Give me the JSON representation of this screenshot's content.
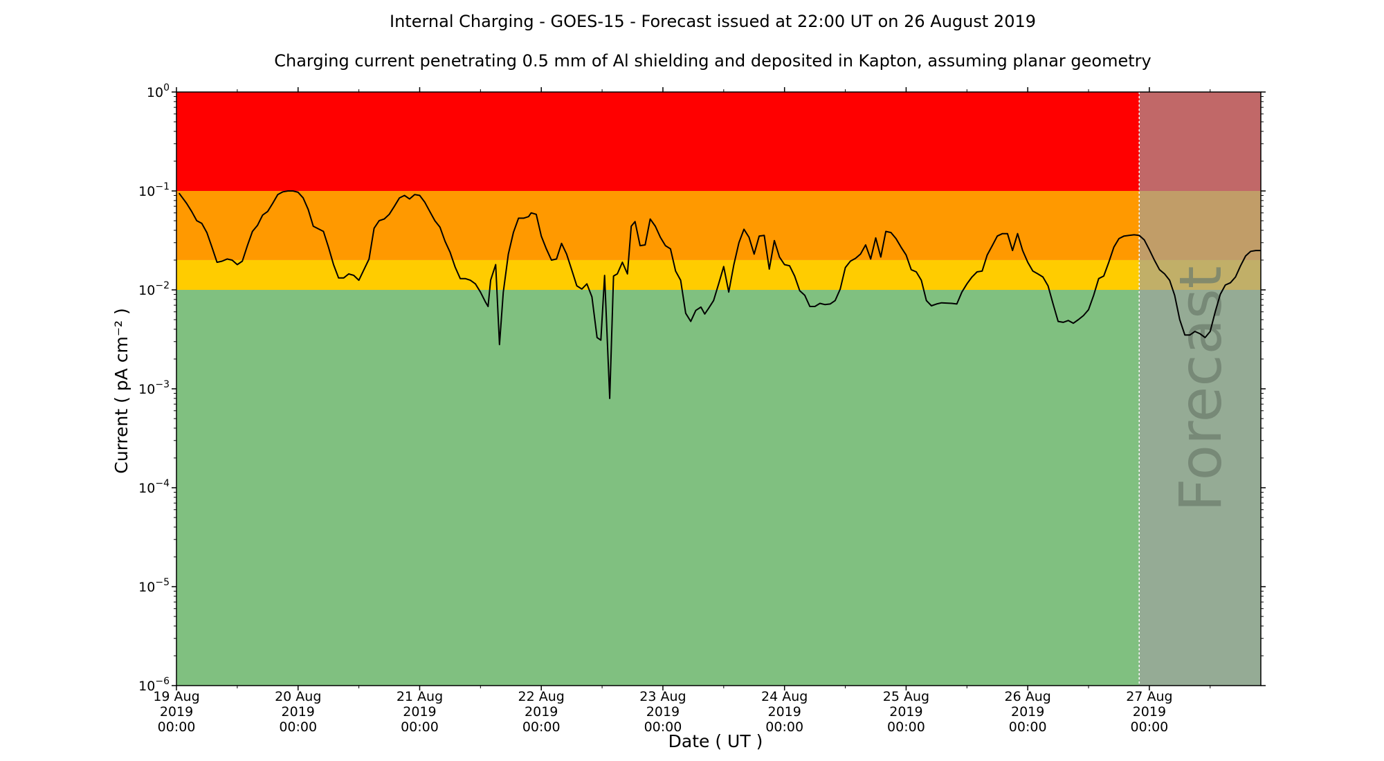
{
  "chart_data": {
    "type": "line",
    "title": "Internal Charging - GOES-15 - Forecast issued at 22:00 UT on 26 August 2019",
    "subtitle": "Charging current penetrating 0.5 mm of Al shielding and deposited in Kapton, assuming planar geometry",
    "xlabel": "Date ( UT )",
    "ylabel": "Current ( pA cm⁻² )",
    "y_scale": "log",
    "ylim": [
      1e-06,
      1
    ],
    "xlim": [
      "2019-08-19 00:00",
      "2019-08-27 22:00"
    ],
    "y_ticks": [
      {
        "value": 1e-06,
        "base": "10",
        "exp": "−6"
      },
      {
        "value": 1e-05,
        "base": "10",
        "exp": "−5"
      },
      {
        "value": 0.0001,
        "base": "10",
        "exp": "−4"
      },
      {
        "value": 0.001,
        "base": "10",
        "exp": "−3"
      },
      {
        "value": 0.01,
        "base": "10",
        "exp": "−2"
      },
      {
        "value": 0.1,
        "base": "10",
        "exp": "−1"
      },
      {
        "value": 1,
        "base": "10",
        "exp": "0"
      }
    ],
    "x_ticks": [
      {
        "date": "2019-08-19 00:00",
        "lines": [
          "19 Aug",
          "2019",
          "00:00"
        ]
      },
      {
        "date": "2019-08-20 00:00",
        "lines": [
          "20 Aug",
          "2019",
          "00:00"
        ]
      },
      {
        "date": "2019-08-21 00:00",
        "lines": [
          "21 Aug",
          "2019",
          "00:00"
        ]
      },
      {
        "date": "2019-08-22 00:00",
        "lines": [
          "22 Aug",
          "2019",
          "00:00"
        ]
      },
      {
        "date": "2019-08-23 00:00",
        "lines": [
          "23 Aug",
          "2019",
          "00:00"
        ]
      },
      {
        "date": "2019-08-24 00:00",
        "lines": [
          "24 Aug",
          "2019",
          "00:00"
        ]
      },
      {
        "date": "2019-08-25 00:00",
        "lines": [
          "25 Aug",
          "2019",
          "00:00"
        ]
      },
      {
        "date": "2019-08-26 00:00",
        "lines": [
          "26 Aug",
          "2019",
          "00:00"
        ]
      },
      {
        "date": "2019-08-27 00:00",
        "lines": [
          "27 Aug",
          "2019",
          "00:00"
        ]
      }
    ],
    "x_minor_ticks": [
      "2019-08-19 12:00",
      "2019-08-20 12:00",
      "2019-08-21 12:00",
      "2019-08-22 12:00",
      "2019-08-23 12:00",
      "2019-08-24 12:00",
      "2019-08-25 12:00",
      "2019-08-26 12:00",
      "2019-08-27 12:00"
    ],
    "bands": [
      {
        "from": 0.1,
        "to": 1,
        "color": "#ff0000"
      },
      {
        "from": 0.02,
        "to": 0.1,
        "color": "#ff9900"
      },
      {
        "from": 0.01,
        "to": 0.02,
        "color": "#ffcc00"
      },
      {
        "from": 1e-06,
        "to": 0.01,
        "color": "#80c080"
      }
    ],
    "forecast": {
      "start": "2019-08-26 22:00",
      "label": "Forecast",
      "overlay_color": "#a0a0a0",
      "overlay_opacity": 0.65
    },
    "line_color": "#000000",
    "series": [
      {
        "points": [
          [
            "2019-08-19 00:30",
            0.095
          ],
          [
            "2019-08-19 02:00",
            0.075
          ],
          [
            "2019-08-19 03:00",
            0.062
          ],
          [
            "2019-08-19 04:00",
            0.05
          ],
          [
            "2019-08-19 05:00",
            0.047
          ],
          [
            "2019-08-19 06:00",
            0.038
          ],
          [
            "2019-08-19 07:00",
            0.027
          ],
          [
            "2019-08-19 08:00",
            0.019
          ],
          [
            "2019-08-19 09:00",
            0.0195
          ],
          [
            "2019-08-19 10:00",
            0.0205
          ],
          [
            "2019-08-19 11:00",
            0.02
          ],
          [
            "2019-08-19 12:00",
            0.018
          ],
          [
            "2019-08-19 13:00",
            0.0195
          ],
          [
            "2019-08-19 14:00",
            0.028
          ],
          [
            "2019-08-19 15:00",
            0.039
          ],
          [
            "2019-08-19 16:00",
            0.045
          ],
          [
            "2019-08-19 17:00",
            0.057
          ],
          [
            "2019-08-19 18:00",
            0.062
          ],
          [
            "2019-08-19 19:00",
            0.075
          ],
          [
            "2019-08-19 20:00",
            0.092
          ],
          [
            "2019-08-19 21:00",
            0.098
          ],
          [
            "2019-08-19 22:00",
            0.1
          ],
          [
            "2019-08-19 23:00",
            0.1
          ],
          [
            "2019-08-20 00:00",
            0.097
          ],
          [
            "2019-08-20 01:00",
            0.085
          ],
          [
            "2019-08-20 02:00",
            0.065
          ],
          [
            "2019-08-20 03:00",
            0.044
          ],
          [
            "2019-08-20 05:00",
            0.039
          ],
          [
            "2019-08-20 06:00",
            0.027
          ],
          [
            "2019-08-20 07:00",
            0.018
          ],
          [
            "2019-08-20 08:00",
            0.0132
          ],
          [
            "2019-08-20 09:00",
            0.0132
          ],
          [
            "2019-08-20 10:00",
            0.0145
          ],
          [
            "2019-08-20 11:00",
            0.014
          ],
          [
            "2019-08-20 12:00",
            0.0125
          ],
          [
            "2019-08-20 13:00",
            0.016
          ],
          [
            "2019-08-20 14:00",
            0.0205
          ],
          [
            "2019-08-20 15:00",
            0.042
          ],
          [
            "2019-08-20 16:00",
            0.05
          ],
          [
            "2019-08-20 17:00",
            0.052
          ],
          [
            "2019-08-20 18:00",
            0.058
          ],
          [
            "2019-08-20 19:00",
            0.07
          ],
          [
            "2019-08-20 20:00",
            0.085
          ],
          [
            "2019-08-20 21:00",
            0.09
          ],
          [
            "2019-08-20 22:00",
            0.083
          ],
          [
            "2019-08-20 23:00",
            0.092
          ],
          [
            "2019-08-21 00:00",
            0.09
          ],
          [
            "2019-08-21 01:00",
            0.077
          ],
          [
            "2019-08-21 02:00",
            0.062
          ],
          [
            "2019-08-21 03:00",
            0.05
          ],
          [
            "2019-08-21 04:00",
            0.043
          ],
          [
            "2019-08-21 05:00",
            0.031
          ],
          [
            "2019-08-21 06:00",
            0.024
          ],
          [
            "2019-08-21 07:00",
            0.017
          ],
          [
            "2019-08-21 08:00",
            0.013
          ],
          [
            "2019-08-21 09:00",
            0.013
          ],
          [
            "2019-08-21 10:00",
            0.0125
          ],
          [
            "2019-08-21 11:00",
            0.0115
          ],
          [
            "2019-08-21 12:00",
            0.0095
          ],
          [
            "2019-08-21 13:00",
            0.0075
          ],
          [
            "2019-08-21 13:30",
            0.0068
          ],
          [
            "2019-08-21 14:00",
            0.0125
          ],
          [
            "2019-08-21 15:00",
            0.018
          ],
          [
            "2019-08-21 15:45",
            0.0028
          ],
          [
            "2019-08-21 16:30",
            0.0095
          ],
          [
            "2019-08-21 17:30",
            0.023
          ],
          [
            "2019-08-21 18:30",
            0.038
          ],
          [
            "2019-08-21 19:30",
            0.053
          ],
          [
            "2019-08-21 20:30",
            0.053
          ],
          [
            "2019-08-21 21:30",
            0.055
          ],
          [
            "2019-08-21 22:00",
            0.06
          ],
          [
            "2019-08-21 23:00",
            0.058
          ],
          [
            "2019-08-22 00:00",
            0.035
          ],
          [
            "2019-08-22 01:00",
            0.026
          ],
          [
            "2019-08-22 02:00",
            0.02
          ],
          [
            "2019-08-22 03:00",
            0.0205
          ],
          [
            "2019-08-22 04:00",
            0.0295
          ],
          [
            "2019-08-22 05:00",
            0.023
          ],
          [
            "2019-08-22 06:00",
            0.016
          ],
          [
            "2019-08-22 07:00",
            0.011
          ],
          [
            "2019-08-22 08:00",
            0.0102
          ],
          [
            "2019-08-22 09:00",
            0.0115
          ],
          [
            "2019-08-22 10:00",
            0.0085
          ],
          [
            "2019-08-22 11:00",
            0.0033
          ],
          [
            "2019-08-22 11:45",
            0.0031
          ],
          [
            "2019-08-22 12:30",
            0.014
          ],
          [
            "2019-08-22 13:30",
            0.0008
          ],
          [
            "2019-08-22 14:15",
            0.0138
          ],
          [
            "2019-08-22 15:00",
            0.0145
          ],
          [
            "2019-08-22 16:00",
            0.019
          ],
          [
            "2019-08-22 17:00",
            0.0145
          ],
          [
            "2019-08-22 17:45",
            0.044
          ],
          [
            "2019-08-22 18:30",
            0.049
          ],
          [
            "2019-08-22 19:30",
            0.028
          ],
          [
            "2019-08-22 20:30",
            0.0285
          ],
          [
            "2019-08-22 21:30",
            0.052
          ],
          [
            "2019-08-22 22:30",
            0.044
          ],
          [
            "2019-08-22 23:30",
            0.034
          ],
          [
            "2019-08-23 00:30",
            0.028
          ],
          [
            "2019-08-23 01:30",
            0.026
          ],
          [
            "2019-08-23 02:30",
            0.0155
          ],
          [
            "2019-08-23 03:30",
            0.0125
          ],
          [
            "2019-08-23 04:30",
            0.0058
          ],
          [
            "2019-08-23 05:30",
            0.0048
          ],
          [
            "2019-08-23 06:30",
            0.0062
          ],
          [
            "2019-08-23 07:30",
            0.0067
          ],
          [
            "2019-08-23 08:15",
            0.0057
          ],
          [
            "2019-08-23 09:00",
            0.0065
          ],
          [
            "2019-08-23 10:00",
            0.0078
          ],
          [
            "2019-08-23 11:00",
            0.0115
          ],
          [
            "2019-08-23 12:00",
            0.0172
          ],
          [
            "2019-08-23 13:00",
            0.0095
          ],
          [
            "2019-08-23 14:00",
            0.018
          ],
          [
            "2019-08-23 15:00",
            0.03
          ],
          [
            "2019-08-23 16:00",
            0.041
          ],
          [
            "2019-08-23 17:00",
            0.034
          ],
          [
            "2019-08-23 18:00",
            0.023
          ],
          [
            "2019-08-23 19:00",
            0.035
          ],
          [
            "2019-08-23 20:00",
            0.0355
          ],
          [
            "2019-08-23 21:00",
            0.0162
          ],
          [
            "2019-08-23 22:00",
            0.0315
          ],
          [
            "2019-08-23 23:00",
            0.0215
          ],
          [
            "2019-08-24 00:00",
            0.018
          ],
          [
            "2019-08-24 01:00",
            0.0175
          ],
          [
            "2019-08-24 02:00",
            0.0138
          ],
          [
            "2019-08-24 03:00",
            0.0098
          ],
          [
            "2019-08-24 04:00",
            0.0088
          ],
          [
            "2019-08-24 05:00",
            0.0068
          ],
          [
            "2019-08-24 06:00",
            0.0068
          ],
          [
            "2019-08-24 07:00",
            0.0073
          ],
          [
            "2019-08-24 08:00",
            0.0071
          ],
          [
            "2019-08-24 09:00",
            0.0072
          ],
          [
            "2019-08-24 10:00",
            0.0078
          ],
          [
            "2019-08-24 11:00",
            0.0102
          ],
          [
            "2019-08-24 12:00",
            0.0168
          ],
          [
            "2019-08-24 13:00",
            0.0195
          ],
          [
            "2019-08-24 14:00",
            0.0208
          ],
          [
            "2019-08-24 15:00",
            0.023
          ],
          [
            "2019-08-24 16:00",
            0.0285
          ],
          [
            "2019-08-24 17:00",
            0.0205
          ],
          [
            "2019-08-24 18:00",
            0.0335
          ],
          [
            "2019-08-24 19:00",
            0.0215
          ],
          [
            "2019-08-24 20:00",
            0.039
          ],
          [
            "2019-08-24 21:00",
            0.038
          ],
          [
            "2019-08-24 22:00",
            0.033
          ],
          [
            "2019-08-24 23:00",
            0.027
          ],
          [
            "2019-08-25 00:00",
            0.0225
          ],
          [
            "2019-08-25 01:00",
            0.016
          ],
          [
            "2019-08-25 02:00",
            0.0152
          ],
          [
            "2019-08-25 03:00",
            0.0125
          ],
          [
            "2019-08-25 04:00",
            0.0078
          ],
          [
            "2019-08-25 05:00",
            0.0069
          ],
          [
            "2019-08-25 06:00",
            0.0072
          ],
          [
            "2019-08-25 07:00",
            0.0074
          ],
          [
            "2019-08-25 09:00",
            0.0073
          ],
          [
            "2019-08-25 10:00",
            0.0072
          ],
          [
            "2019-08-25 11:00",
            0.0095
          ],
          [
            "2019-08-25 12:00",
            0.0115
          ],
          [
            "2019-08-25 13:00",
            0.0135
          ],
          [
            "2019-08-25 14:00",
            0.0152
          ],
          [
            "2019-08-25 15:00",
            0.0155
          ],
          [
            "2019-08-25 16:00",
            0.0225
          ],
          [
            "2019-08-25 17:00",
            0.028
          ],
          [
            "2019-08-25 18:00",
            0.035
          ],
          [
            "2019-08-25 19:00",
            0.037
          ],
          [
            "2019-08-25 20:00",
            0.037
          ],
          [
            "2019-08-25 21:00",
            0.025
          ],
          [
            "2019-08-25 22:00",
            0.037
          ],
          [
            "2019-08-25 23:00",
            0.025
          ],
          [
            "2019-08-26 00:00",
            0.019
          ],
          [
            "2019-08-26 01:00",
            0.0155
          ],
          [
            "2019-08-26 02:00",
            0.0145
          ],
          [
            "2019-08-26 03:00",
            0.0135
          ],
          [
            "2019-08-26 04:00",
            0.011
          ],
          [
            "2019-08-26 05:00",
            0.0072
          ],
          [
            "2019-08-26 06:00",
            0.0048
          ],
          [
            "2019-08-26 07:00",
            0.0047
          ],
          [
            "2019-08-26 08:00",
            0.0049
          ],
          [
            "2019-08-26 09:00",
            0.0046
          ],
          [
            "2019-08-26 10:00",
            0.005
          ],
          [
            "2019-08-26 11:00",
            0.0055
          ],
          [
            "2019-08-26 12:00",
            0.0063
          ],
          [
            "2019-08-26 13:00",
            0.0088
          ],
          [
            "2019-08-26 14:00",
            0.013
          ],
          [
            "2019-08-26 15:00",
            0.0138
          ],
          [
            "2019-08-26 16:00",
            0.019
          ],
          [
            "2019-08-26 17:00",
            0.027
          ],
          [
            "2019-08-26 18:00",
            0.033
          ],
          [
            "2019-08-26 19:00",
            0.035
          ],
          [
            "2019-08-26 20:00",
            0.0355
          ],
          [
            "2019-08-26 21:00",
            0.036
          ],
          [
            "2019-08-26 22:00",
            0.0355
          ],
          [
            "2019-08-26 23:00",
            0.032
          ],
          [
            "2019-08-27 00:00",
            0.0255
          ],
          [
            "2019-08-27 01:00",
            0.02
          ],
          [
            "2019-08-27 02:00",
            0.016
          ],
          [
            "2019-08-27 03:00",
            0.0145
          ],
          [
            "2019-08-27 04:00",
            0.0125
          ],
          [
            "2019-08-27 05:00",
            0.0088
          ],
          [
            "2019-08-27 06:00",
            0.005
          ],
          [
            "2019-08-27 07:00",
            0.0035
          ],
          [
            "2019-08-27 08:00",
            0.0035
          ],
          [
            "2019-08-27 09:00",
            0.0038
          ],
          [
            "2019-08-27 10:00",
            0.0036
          ],
          [
            "2019-08-27 11:00",
            0.0033
          ],
          [
            "2019-08-27 12:00",
            0.0038
          ],
          [
            "2019-08-27 13:00",
            0.006
          ],
          [
            "2019-08-27 14:00",
            0.009
          ],
          [
            "2019-08-27 15:00",
            0.0112
          ],
          [
            "2019-08-27 16:00",
            0.0118
          ],
          [
            "2019-08-27 17:00",
            0.0135
          ],
          [
            "2019-08-27 18:00",
            0.0175
          ],
          [
            "2019-08-27 19:00",
            0.022
          ],
          [
            "2019-08-27 20:00",
            0.0245
          ],
          [
            "2019-08-27 21:00",
            0.025
          ],
          [
            "2019-08-27 22:00",
            0.025
          ]
        ]
      }
    ]
  }
}
